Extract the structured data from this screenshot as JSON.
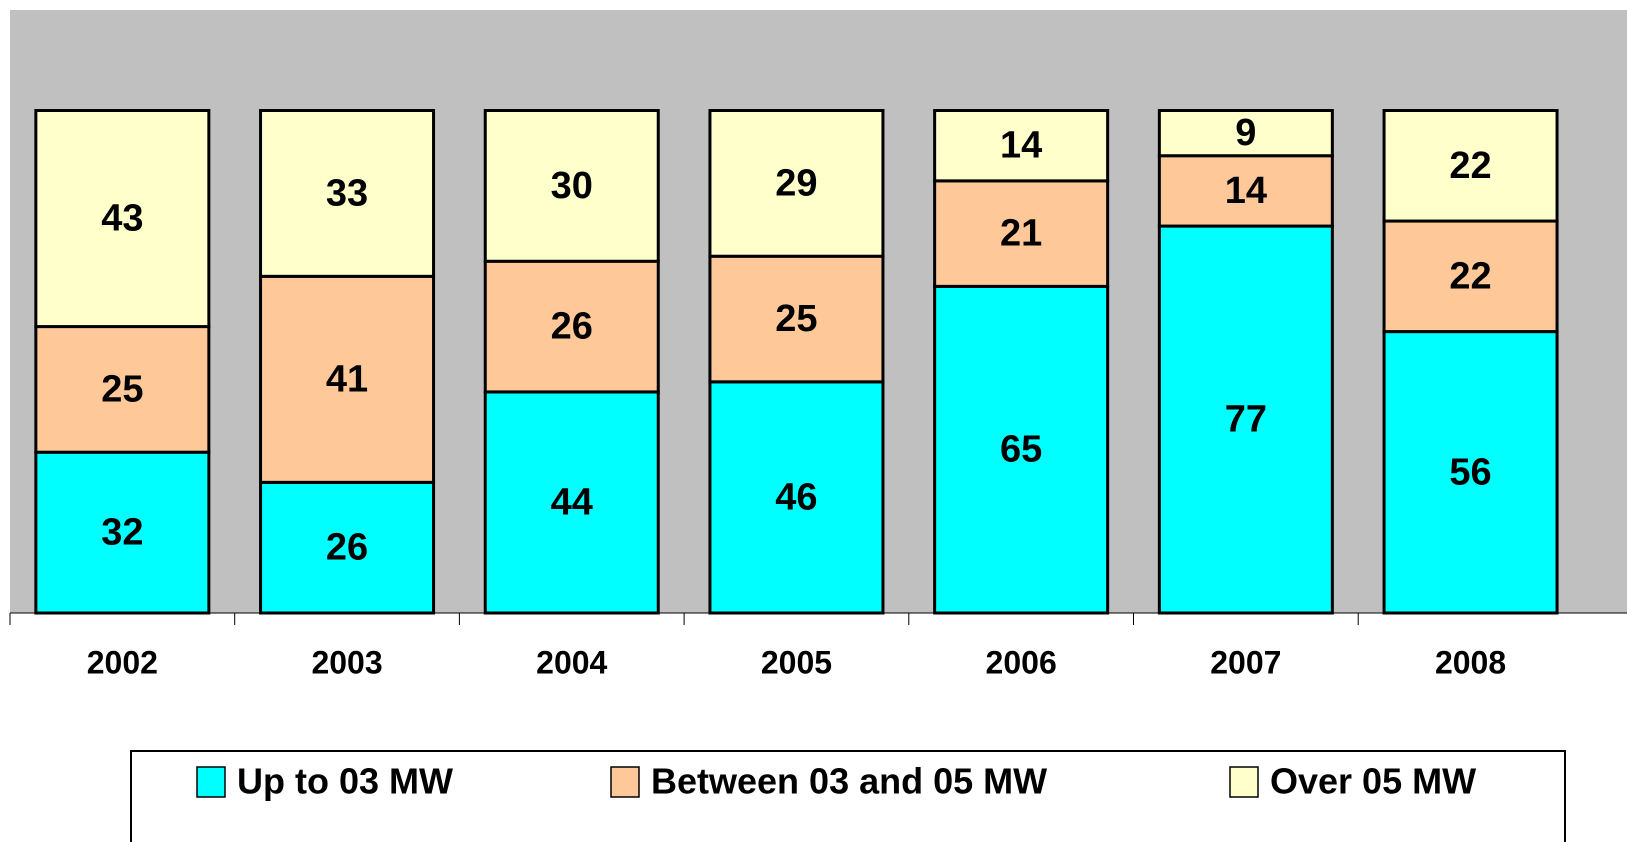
{
  "chart_data": {
    "type": "stacked_bar",
    "categories": [
      "2002",
      "2003",
      "2004",
      "2005",
      "2006",
      "2007",
      "2008"
    ],
    "series": [
      {
        "name": "Up to 03 MW",
        "color": "#00ffff",
        "values": [
          32,
          26,
          44,
          46,
          65,
          77,
          56
        ]
      },
      {
        "name": "Between 03 and 05 MW",
        "color": "#ffc899",
        "values": [
          25,
          41,
          26,
          25,
          21,
          14,
          22
        ]
      },
      {
        "name": "Over 05 MW",
        "color": "#ffffcc",
        "values": [
          43,
          33,
          30,
          29,
          14,
          9,
          22
        ]
      }
    ],
    "ylim": [
      0,
      120
    ],
    "legend": "bottom"
  }
}
